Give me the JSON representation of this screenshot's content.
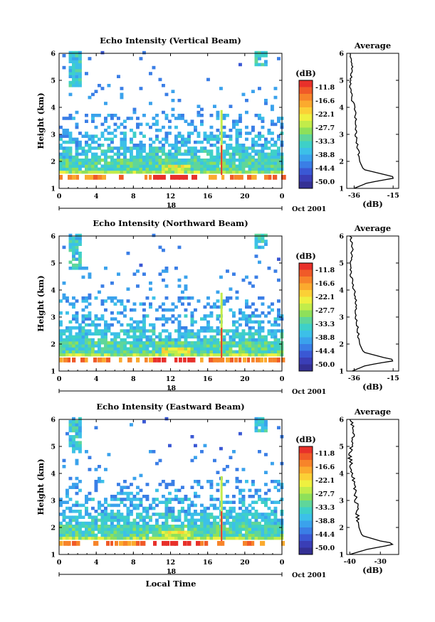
{
  "page": {
    "xlabel": "Local Time"
  },
  "colorbar": {
    "unit_label": "(dB)",
    "tick_labels": [
      "-11.8",
      "-16.6",
      "-22.1",
      "-27.7",
      "-33.3",
      "-38.8",
      "-44.4",
      "-50.0"
    ],
    "colors": [
      "#e8302a",
      "#f05a28",
      "#f7842a",
      "#fbaa2e",
      "#fbd036",
      "#eef040",
      "#c2ec4a",
      "#8ee05a",
      "#5fd69a",
      "#3ed0c8",
      "#3cc0e8",
      "#3aa2ec",
      "#3a7ee6",
      "#3a58d4",
      "#3a3eb6",
      "#343094"
    ]
  },
  "chart_data": [
    {
      "type": "heatmap",
      "title": "Echo Intensity (Vertical Beam)",
      "xlabel": "",
      "ylabel": "Height (km)",
      "x_tick_labels": [
        "0",
        "4",
        "8",
        "12",
        "16",
        "20",
        "0"
      ],
      "day_label": "18",
      "month_label": "Oct 2001",
      "xlim": [
        0,
        24
      ],
      "ylim": [
        1,
        6
      ],
      "y_tick_labels": [
        "1",
        "2",
        "3",
        "4",
        "5",
        "6"
      ],
      "profile": {
        "title": "Average",
        "xlabel": "(dB)",
        "x_tick_labels": [
          "-36",
          "-15"
        ],
        "xlim": [
          -40,
          -12
        ],
        "y": [
          1.0,
          1.2,
          1.3,
          1.4,
          1.5,
          1.7,
          2.0,
          2.5,
          3.0,
          3.5,
          4.0,
          4.3,
          4.6,
          5.0,
          5.5,
          6.0
        ],
        "x": [
          -36,
          -29,
          -21,
          -13,
          -19,
          -31,
          -33,
          -34,
          -35,
          -35,
          -36,
          -37,
          -38,
          -38,
          -37,
          -38
        ]
      }
    },
    {
      "type": "heatmap",
      "title": "Echo Intensity (Northward Beam)",
      "xlabel": "",
      "ylabel": "Height (km)",
      "x_tick_labels": [
        "0",
        "4",
        "8",
        "12",
        "16",
        "20",
        "0"
      ],
      "day_label": "18",
      "month_label": "Oct 2001",
      "xlim": [
        0,
        24
      ],
      "ylim": [
        1,
        6
      ],
      "y_tick_labels": [
        "1",
        "2",
        "3",
        "4",
        "5",
        "6"
      ],
      "profile": {
        "title": "Average",
        "xlabel": "(dB)",
        "x_tick_labels": [
          "-36",
          "-15"
        ],
        "xlim": [
          -40,
          -12
        ],
        "y": [
          1.0,
          1.2,
          1.3,
          1.4,
          1.5,
          1.7,
          2.0,
          2.5,
          3.0,
          3.5,
          4.0,
          4.3,
          4.6,
          5.0,
          5.5,
          6.0
        ],
        "x": [
          -37,
          -30,
          -22,
          -13,
          -20,
          -31,
          -33,
          -34,
          -35,
          -35,
          -36,
          -37,
          -38,
          -38,
          -37,
          -38
        ]
      }
    },
    {
      "type": "heatmap",
      "title": "Echo Intensity (Eastward Beam)",
      "xlabel": "Local Time",
      "ylabel": "Height (km)",
      "x_tick_labels": [
        "0",
        "4",
        "8",
        "12",
        "16",
        "20",
        "0"
      ],
      "day_label": "18",
      "month_label": "Oct 2001",
      "xlim": [
        0,
        24
      ],
      "ylim": [
        1,
        6
      ],
      "y_tick_labels": [
        "1",
        "2",
        "3",
        "4",
        "5",
        "6"
      ],
      "profile": {
        "title": "Average",
        "xlabel": "(dB)",
        "x_tick_labels": [
          "-40",
          "-30"
        ],
        "xlim": [
          -41,
          -24
        ],
        "y": [
          1.0,
          1.2,
          1.3,
          1.4,
          1.5,
          1.7,
          2.0,
          2.5,
          3.0,
          3.5,
          4.0,
          4.3,
          4.6,
          5.0,
          5.5,
          6.0
        ],
        "x": [
          -40,
          -34,
          -29,
          -25,
          -30,
          -36,
          -37,
          -37.5,
          -38,
          -38.5,
          -39,
          -39.5,
          -40,
          -39.5,
          -39,
          -39.5
        ]
      }
    }
  ]
}
